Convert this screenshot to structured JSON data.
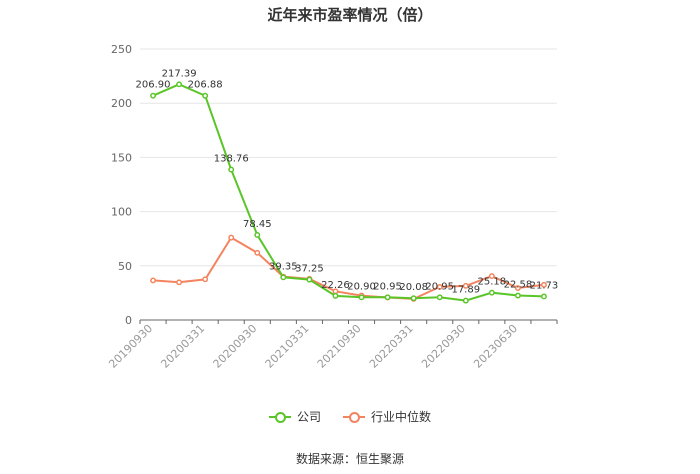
{
  "chart_data": {
    "type": "line",
    "title": "近年来市盈率情况（倍）",
    "xlabel": "",
    "ylabel": "",
    "ylim": [
      0,
      250
    ],
    "yticks": [
      0,
      50,
      100,
      150,
      200,
      250
    ],
    "grid": true,
    "legend_position": "bottom",
    "x": [
      "20190930",
      "20191231",
      "20200331",
      "20200630",
      "20200930",
      "20201231",
      "20210331",
      "20210630",
      "20210930",
      "20211231",
      "20220331",
      "20220630",
      "20220930",
      "20221231",
      "20230630",
      "20230930"
    ],
    "x_tick_labels": [
      "20190930",
      "20200331",
      "20200930",
      "20210331",
      "20210930",
      "20220331",
      "20220930",
      "20230630"
    ],
    "series": [
      {
        "name": "公司",
        "color": "#5ac528",
        "values": [
          206.9,
          217.39,
          206.88,
          138.76,
          78.45,
          39.35,
          37.25,
          22.26,
          20.9,
          20.95,
          20.08,
          20.95,
          17.89,
          25.18,
          22.58,
          21.73
        ],
        "labels": [
          "206.90",
          "217.39",
          "206.88",
          "138.76",
          "78.45",
          "39.35",
          "37.25",
          "22.26",
          "20.90",
          "20.95",
          "20.08",
          "20.95",
          "17.89",
          "25.18",
          "22.58",
          "21.73"
        ]
      },
      {
        "name": "行业中位数",
        "color": "#f4845f",
        "values": [
          36.5,
          34.8,
          37.5,
          76.0,
          62.0,
          40.0,
          38.0,
          26.5,
          22.5,
          20.8,
          19.5,
          30.5,
          31.5,
          40.5,
          29.5,
          32.5
        ]
      }
    ],
    "source": "数据来源：恒生聚源"
  }
}
